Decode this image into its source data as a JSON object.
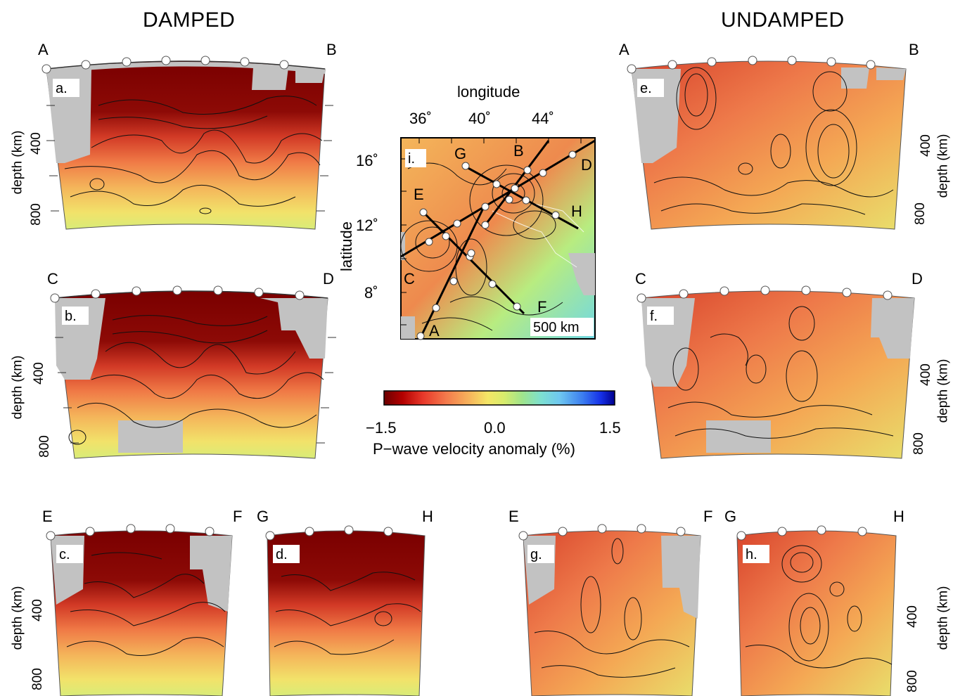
{
  "headings": {
    "damped": "DAMPED",
    "undamped": "UNDAMPED"
  },
  "profile_endpoints": [
    "A",
    "B",
    "C",
    "D",
    "E",
    "F",
    "G",
    "H"
  ],
  "panels": [
    {
      "tag": "a.",
      "start": "A",
      "end": "B",
      "group": "damped"
    },
    {
      "tag": "b.",
      "start": "C",
      "end": "D",
      "group": "damped"
    },
    {
      "tag": "c.",
      "start": "E",
      "end": "F",
      "group": "damped"
    },
    {
      "tag": "d.",
      "start": "G",
      "end": "H",
      "group": "damped"
    },
    {
      "tag": "e.",
      "start": "A",
      "end": "B",
      "group": "undamped"
    },
    {
      "tag": "f.",
      "start": "C",
      "end": "D",
      "group": "undamped"
    },
    {
      "tag": "g.",
      "start": "E",
      "end": "F",
      "group": "undamped"
    },
    {
      "tag": "h.",
      "start": "G",
      "end": "H",
      "group": "undamped"
    }
  ],
  "depth_axis": {
    "label": "depth (km)",
    "ticks": [
      "400",
      "800"
    ]
  },
  "map": {
    "tag": "i.",
    "xlabel": "longitude",
    "ylabel": "latitude",
    "x_ticks": [
      "36˚",
      "40˚",
      "44˚"
    ],
    "y_ticks": [
      "16˚",
      "12˚",
      "8˚"
    ],
    "scale_label": "500 km"
  },
  "colorbar": {
    "min_label": "−1.5",
    "mid_label": "0.0",
    "max_label": "1.5",
    "label": "P−wave velocity anomaly (%)",
    "colors": [
      "#6b0000",
      "#b30000",
      "#e8392a",
      "#f47a4c",
      "#f6b45c",
      "#f4e666",
      "#d8ec6c",
      "#9fe48c",
      "#7de0d0",
      "#6fc8f0",
      "#3c7ef0",
      "#1530e8",
      "#00008f"
    ]
  },
  "colors": {
    "missing": "#c2c2c2",
    "contour": "#111111"
  }
}
